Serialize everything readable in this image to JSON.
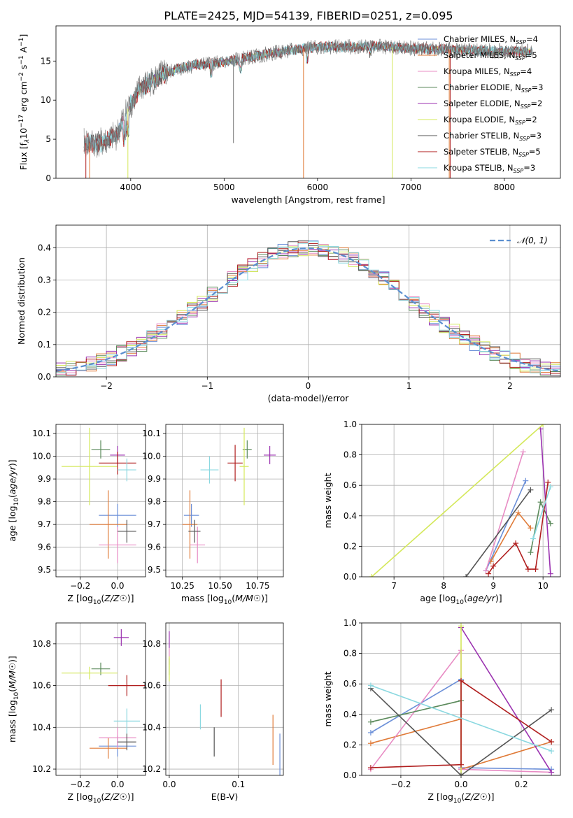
{
  "figure": {
    "title": "PLATE=2425, MJD=54139, FIBERID=0251, z=0.095"
  },
  "colors": {
    "Chabrier MILES": "#6b8fd8",
    "Salpeter MILES": "#e07b39",
    "Kroupa MILES": "#e88cc4",
    "Chabrier ELODIE": "#5b8a5b",
    "Salpeter ELODIE": "#9b32b0",
    "Kroupa ELODIE": "#d4e85a",
    "Chabrier STELIB": "#555555",
    "Salpeter STELIB": "#b01e1e",
    "Kroupa STELIB": "#8ad8e0"
  },
  "chart_data": [
    {
      "id": "spectrum",
      "type": "line",
      "title": "PLATE=2425, MJD=54139, FIBERID=0251, z=0.095",
      "xlabel": "wavelength [Angstrom, rest frame]",
      "ylabel": "Flux [f_λ 10^-17 erg cm^-2 s^-1 A^-1]",
      "xlim": [
        3200,
        8600
      ],
      "ylim": [
        0,
        19.5
      ],
      "xticks": [
        4000,
        5000,
        6000,
        7000,
        8000
      ],
      "yticks": [
        0,
        5,
        10,
        15
      ],
      "grid": false,
      "legend_position": "top-right",
      "legend": [
        {
          "name": "Chabrier MILES",
          "nssp": "4"
        },
        {
          "name": "Salpeter MILES",
          "nssp": "5"
        },
        {
          "name": "Kroupa MILES",
          "nssp": "4"
        },
        {
          "name": "Chabrier ELODIE",
          "nssp": "3"
        },
        {
          "name": "Salpeter ELODIE",
          "nssp": "2"
        },
        {
          "name": "Kroupa ELODIE",
          "nssp": "2"
        },
        {
          "name": "Chabrier STELIB",
          "nssp": "3"
        },
        {
          "name": "Salpeter STELIB",
          "nssp": "5"
        },
        {
          "name": "Kroupa STELIB",
          "nssp": "3"
        }
      ],
      "continuum": {
        "x": [
          3500,
          3700,
          3850,
          3950,
          4100,
          4300,
          4500,
          4700,
          5000,
          5200,
          5500,
          5800,
          6000,
          6300,
          6600,
          7000,
          7400,
          7800,
          8200,
          8300
        ],
        "y": [
          4.5,
          4.5,
          5.5,
          8.5,
          11.5,
          13.0,
          14.0,
          14.5,
          14.8,
          15.3,
          16.0,
          16.5,
          16.8,
          16.8,
          16.9,
          16.6,
          16.5,
          16.3,
          16.2,
          16.2
        ]
      },
      "series_start": [
        {
          "name": "Chabrier MILES",
          "start": 3540
        },
        {
          "name": "Salpeter MILES",
          "start": 3540
        },
        {
          "name": "Kroupa MILES",
          "start": 3540
        },
        {
          "name": "Chabrier ELODIE",
          "start": 4000
        },
        {
          "name": "Salpeter ELODIE",
          "start": 4000
        },
        {
          "name": "Kroupa ELODIE",
          "start": 4000
        },
        {
          "name": "Chabrier STELIB",
          "start": 3500
        },
        {
          "name": "Salpeter STELIB",
          "start": 3500
        },
        {
          "name": "Kroupa STELIB",
          "start": 3500
        }
      ]
    },
    {
      "id": "residuals",
      "type": "line",
      "xlabel": "(data-model)/error",
      "ylabel": "Normed distribution",
      "xlim": [
        -2.5,
        2.5
      ],
      "ylim": [
        0,
        0.47
      ],
      "xticks": [
        -2,
        -1,
        0,
        1,
        2
      ],
      "yticks": [
        0.0,
        0.1,
        0.2,
        0.3,
        0.4
      ],
      "grid": true,
      "bin_width": 0.1,
      "legend": [
        {
          "name": "𝒩(0, 1)",
          "style": "dashed"
        }
      ],
      "legend_position": "top-right",
      "series": [
        {
          "name": "Chabrier MILES",
          "seed": 1
        },
        {
          "name": "Salpeter MILES",
          "seed": 2
        },
        {
          "name": "Kroupa MILES",
          "seed": 3
        },
        {
          "name": "Chabrier ELODIE",
          "seed": 4
        },
        {
          "name": "Salpeter ELODIE",
          "seed": 5
        },
        {
          "name": "Kroupa ELODIE",
          "seed": 6
        },
        {
          "name": "Chabrier STELIB",
          "seed": 7
        },
        {
          "name": "Salpeter STELIB",
          "seed": 8
        },
        {
          "name": "Kroupa STELIB",
          "seed": 9
        }
      ]
    },
    {
      "id": "age_vs_Z",
      "type": "scatter",
      "xlabel": "Z [log10(Z/Z☉)]",
      "ylabel": "age  [log10(age/yr)]",
      "xlim": [
        -0.33,
        0.15
      ],
      "ylim": [
        9.47,
        10.14
      ],
      "xticks": [
        -0.2,
        0.0
      ],
      "yticks": [
        9.5,
        9.6,
        9.7,
        9.8,
        9.9,
        10.0,
        10.1
      ],
      "grid": true,
      "points": [
        {
          "name": "Chabrier MILES",
          "x": 0.0,
          "y": 9.74,
          "xerr": 0.1,
          "yerr": 0.05
        },
        {
          "name": "Salpeter MILES",
          "x": -0.05,
          "y": 9.7,
          "xerr": 0.1,
          "yerr": 0.15
        },
        {
          "name": "Kroupa MILES",
          "x": 0.0,
          "y": 9.61,
          "xerr": 0.1,
          "yerr": 0.08
        },
        {
          "name": "Chabrier ELODIE",
          "x": -0.09,
          "y": 10.03,
          "xerr": 0.05,
          "yerr": 0.04
        },
        {
          "name": "Salpeter ELODIE",
          "x": 0.0,
          "y": 10.005,
          "xerr": 0.04,
          "yerr": 0.04
        },
        {
          "name": "Kroupa ELODIE",
          "x": -0.15,
          "y": 9.955,
          "xerr": 0.15,
          "yerr": 0.17
        },
        {
          "name": "Chabrier STELIB",
          "x": 0.05,
          "y": 9.67,
          "xerr": 0.05,
          "yerr": 0.05
        },
        {
          "name": "Salpeter STELIB",
          "x": 0.0,
          "y": 9.97,
          "xerr": 0.1,
          "yerr": 0.05
        },
        {
          "name": "Kroupa STELIB",
          "x": 0.05,
          "y": 9.94,
          "xerr": 0.05,
          "yerr": 0.05
        }
      ]
    },
    {
      "id": "age_vs_mass",
      "type": "scatter",
      "xlabel": "mass [log10(M/M☉)]",
      "ylabel": "",
      "xlim": [
        10.14,
        10.92
      ],
      "ylim": [
        9.47,
        10.14
      ],
      "xticks": [
        10.25,
        10.5,
        10.75
      ],
      "yticks": [
        9.5,
        9.6,
        9.7,
        9.8,
        9.9,
        10.0,
        10.1
      ],
      "grid": true,
      "points": [
        {
          "name": "Chabrier MILES",
          "x": 10.31,
          "y": 9.74,
          "xerr": 0.05,
          "yerr": 0.05
        },
        {
          "name": "Salpeter MILES",
          "x": 10.3,
          "y": 9.7,
          "xerr": 0.05,
          "yerr": 0.15
        },
        {
          "name": "Kroupa MILES",
          "x": 10.35,
          "y": 9.61,
          "xerr": 0.05,
          "yerr": 0.08
        },
        {
          "name": "Chabrier ELODIE",
          "x": 10.68,
          "y": 10.03,
          "xerr": 0.03,
          "yerr": 0.04
        },
        {
          "name": "Salpeter ELODIE",
          "x": 10.83,
          "y": 10.005,
          "xerr": 0.04,
          "yerr": 0.04
        },
        {
          "name": "Kroupa ELODIE",
          "x": 10.66,
          "y": 9.955,
          "xerr": 0.03,
          "yerr": 0.17
        },
        {
          "name": "Chabrier STELIB",
          "x": 10.33,
          "y": 9.67,
          "xerr": 0.04,
          "yerr": 0.05
        },
        {
          "name": "Salpeter STELIB",
          "x": 10.6,
          "y": 9.97,
          "xerr": 0.05,
          "yerr": 0.08
        },
        {
          "name": "Kroupa STELIB",
          "x": 10.43,
          "y": 9.94,
          "xerr": 0.06,
          "yerr": 0.06
        }
      ]
    },
    {
      "id": "mw_vs_age",
      "type": "line",
      "xlabel": "age  [log10(age/yr)]",
      "ylabel": "mass weight",
      "xlim": [
        6.35,
        10.35
      ],
      "ylim": [
        0,
        1
      ],
      "xticks": [
        7,
        8,
        9,
        10
      ],
      "yticks": [
        0.0,
        0.2,
        0.4,
        0.6,
        0.8,
        1.0
      ],
      "grid": true,
      "series": [
        {
          "name": "Chabrier MILES",
          "x": [
            8.85,
            9.65
          ],
          "y": [
            0.04,
            0.63
          ]
        },
        {
          "name": "Salpeter MILES",
          "x": [
            8.95,
            9.5,
            9.75
          ],
          "y": [
            0.1,
            0.42,
            0.32
          ]
        },
        {
          "name": "Kroupa MILES",
          "x": [
            8.85,
            9.6
          ],
          "y": [
            0.04,
            0.82
          ]
        },
        {
          "name": "Chabrier ELODIE",
          "x": [
            9.75,
            9.95,
            10.15
          ],
          "y": [
            0.16,
            0.49,
            0.35
          ]
        },
        {
          "name": "Salpeter ELODIE",
          "x": [
            9.95,
            10.15
          ],
          "y": [
            0.97,
            0.02
          ]
        },
        {
          "name": "Kroupa ELODIE",
          "x": [
            6.55,
            10.0
          ],
          "y": [
            0.0,
            1.0
          ]
        },
        {
          "name": "Chabrier STELIB",
          "x": [
            8.45,
            9.75
          ],
          "y": [
            0.0,
            0.57
          ]
        },
        {
          "name": "Salpeter STELIB",
          "x": [
            8.9,
            9.0,
            9.45,
            9.7,
            9.85,
            10.1
          ],
          "y": [
            0.02,
            0.07,
            0.22,
            0.05,
            0.05,
            0.62
          ]
        },
        {
          "name": "Kroupa STELIB",
          "x": [
            9.8,
            10.15
          ],
          "y": [
            0.25,
            0.59
          ]
        }
      ]
    },
    {
      "id": "mass_vs_Z",
      "type": "scatter",
      "xlabel": "Z [log10(Z/Z☉)]",
      "ylabel": "mass [log10(M/M☉)]",
      "xlim": [
        -0.33,
        0.15
      ],
      "ylim": [
        10.17,
        10.9
      ],
      "xticks": [
        -0.2,
        0.0
      ],
      "yticks": [
        10.2,
        10.4,
        10.6,
        10.8
      ],
      "grid": true,
      "points": [
        {
          "name": "Chabrier MILES",
          "x": 0.0,
          "y": 10.31,
          "xerr": 0.1,
          "yerr": 0.05
        },
        {
          "name": "Salpeter MILES",
          "x": -0.05,
          "y": 10.3,
          "xerr": 0.1,
          "yerr": 0.05
        },
        {
          "name": "Kroupa MILES",
          "x": 0.0,
          "y": 10.35,
          "xerr": 0.1,
          "yerr": 0.05
        },
        {
          "name": "Chabrier ELODIE",
          "x": -0.09,
          "y": 10.68,
          "xerr": 0.05,
          "yerr": 0.03
        },
        {
          "name": "Salpeter ELODIE",
          "x": 0.02,
          "y": 10.83,
          "xerr": 0.04,
          "yerr": 0.04
        },
        {
          "name": "Kroupa ELODIE",
          "x": -0.15,
          "y": 10.66,
          "xerr": 0.15,
          "yerr": 0.03
        },
        {
          "name": "Chabrier STELIB",
          "x": 0.05,
          "y": 10.33,
          "xerr": 0.05,
          "yerr": 0.04
        },
        {
          "name": "Salpeter STELIB",
          "x": 0.05,
          "y": 10.6,
          "xerr": 0.1,
          "yerr": 0.05
        },
        {
          "name": "Kroupa STELIB",
          "x": 0.05,
          "y": 10.43,
          "xerr": 0.07,
          "yerr": 0.06
        }
      ]
    },
    {
      "id": "mass_vs_ebv",
      "type": "scatter",
      "xlabel": "E(B-V)",
      "ylabel": "",
      "xlim": [
        -0.005,
        0.165
      ],
      "ylim": [
        10.17,
        10.9
      ],
      "xticks": [
        0.0,
        0.1
      ],
      "yticks": [
        10.2,
        10.4,
        10.6,
        10.8
      ],
      "grid": true,
      "points": [
        {
          "name": "Chabrier MILES",
          "x": 0.16,
          "y": 10.27,
          "xerr": 0.0,
          "yerr": 0.1
        },
        {
          "name": "Salpeter MILES",
          "x": 0.15,
          "y": 10.34,
          "xerr": 0.0,
          "yerr": 0.12
        },
        {
          "name": "Kroupa MILES",
          "x": 0.0,
          "y": 10.74,
          "xerr": 0.0,
          "yerr": 0.04
        },
        {
          "name": "Chabrier ELODIE",
          "x": 0.0,
          "y": 10.69,
          "xerr": 0.0,
          "yerr": 0.04
        },
        {
          "name": "Salpeter ELODIE",
          "x": 0.0,
          "y": 10.82,
          "xerr": 0.0,
          "yerr": 0.04
        },
        {
          "name": "Kroupa ELODIE",
          "x": 0.0,
          "y": 10.68,
          "xerr": 0.0,
          "yerr": 0.06
        },
        {
          "name": "Chabrier STELIB",
          "x": 0.065,
          "y": 10.33,
          "xerr": 0.0,
          "yerr": 0.07
        },
        {
          "name": "Salpeter STELIB",
          "x": 0.075,
          "y": 10.54,
          "xerr": 0.0,
          "yerr": 0.09
        },
        {
          "name": "Kroupa STELIB",
          "x": 0.045,
          "y": 10.45,
          "xerr": 0.0,
          "yerr": 0.06
        }
      ]
    },
    {
      "id": "mw_vs_Z",
      "type": "line",
      "xlabel": "Z [log10(Z/Z☉)]",
      "ylabel": "mass weight",
      "xlim": [
        -0.33,
        0.33
      ],
      "ylim": [
        0,
        1
      ],
      "xticks": [
        -0.2,
        0.0,
        0.2
      ],
      "yticks": [
        0.0,
        0.2,
        0.4,
        0.6,
        0.8,
        1.0
      ],
      "grid": true,
      "series": [
        {
          "name": "Chabrier MILES",
          "x": [
            -0.3,
            0.0,
            0.0,
            0.3
          ],
          "y": [
            0.28,
            0.63,
            0.05,
            0.04
          ]
        },
        {
          "name": "Salpeter MILES",
          "x": [
            -0.3,
            0.0,
            0.0,
            0.3
          ],
          "y": [
            0.21,
            0.37,
            0.04,
            0.22
          ]
        },
        {
          "name": "Kroupa MILES",
          "x": [
            -0.3,
            0.0,
            0.0,
            0.3
          ],
          "y": [
            0.04,
            0.82,
            0.04,
            0.02
          ]
        },
        {
          "name": "Chabrier ELODIE",
          "x": [
            -0.3,
            0.0
          ],
          "y": [
            0.35,
            0.49
          ]
        },
        {
          "name": "Salpeter ELODIE",
          "x": [
            0.0,
            0.3
          ],
          "y": [
            0.97,
            0.02
          ]
        },
        {
          "name": "Kroupa ELODIE",
          "x": [
            0.0,
            0.0
          ],
          "y": [
            0.0,
            0.98
          ]
        },
        {
          "name": "Chabrier STELIB",
          "x": [
            -0.3,
            0.0,
            0.3
          ],
          "y": [
            0.57,
            0.0,
            0.43
          ]
        },
        {
          "name": "Salpeter STELIB",
          "x": [
            -0.3,
            0.0,
            0.0,
            0.3
          ],
          "y": [
            0.05,
            0.07,
            0.62,
            0.22
          ]
        },
        {
          "name": "Kroupa STELIB",
          "x": [
            -0.3,
            0.3
          ],
          "y": [
            0.59,
            0.16
          ]
        }
      ]
    }
  ]
}
